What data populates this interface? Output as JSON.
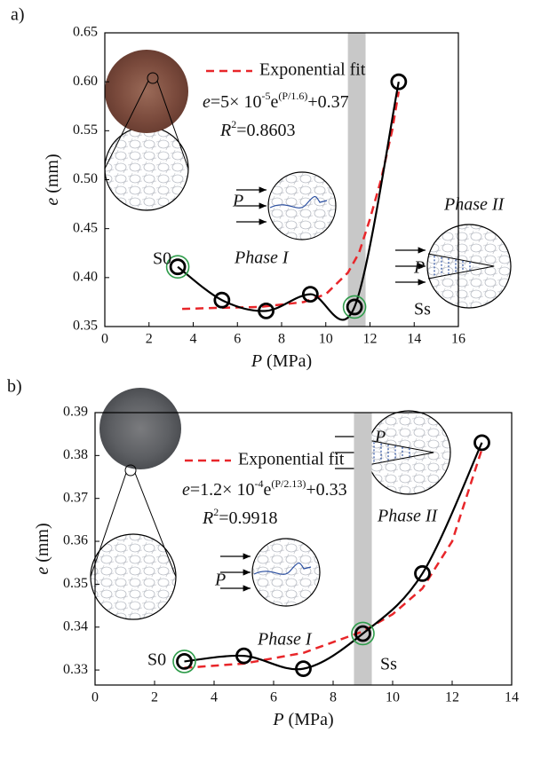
{
  "chart_data": [
    {
      "type": "line",
      "panel_label": "a)",
      "x_label": {
        "var": "P",
        "unit": "(MPa)"
      },
      "y_label": {
        "var": "e",
        "unit": "(mm)"
      },
      "xlim": [
        0,
        16
      ],
      "xticks": [
        0,
        2,
        4,
        6,
        8,
        10,
        12,
        14,
        16
      ],
      "ylim": [
        0.35,
        0.65
      ],
      "yticks": [
        0.35,
        {
          "value": 0.4,
          "label": "0.40"
        },
        0.45,
        {
          "value": 0.5,
          "label": "0.50"
        },
        0.55,
        {
          "value": 0.6,
          "label": "0.60"
        },
        0.65
      ],
      "series": [
        {
          "color": "#000000",
          "x": [
            3.3,
            5.3,
            7.3,
            9.3,
            11.3,
            13.3
          ],
          "values": [
            0.411,
            0.377,
            0.366,
            0.383,
            0.37,
            0.6
          ]
        },
        {
          "name": "Exponential fit",
          "color": "#e8262a",
          "dashed": true,
          "x": [
            3.5,
            5,
            7,
            9,
            10,
            11,
            11.5,
            12,
            12.5,
            13,
            13.3
          ],
          "values": [
            0.368,
            0.369,
            0.37,
            0.375,
            0.383,
            0.405,
            0.425,
            0.46,
            0.5,
            0.55,
            0.59
          ]
        }
      ],
      "highlight_points": [
        0,
        4
      ],
      "highlight_color": "#2e9c4a",
      "band": [
        11,
        11.8
      ],
      "band_color": "#c8c8c8",
      "equation": [
        "e",
        "=5× 10",
        "-5",
        "e",
        "(P/1.6)",
        "+0.37"
      ],
      "r_squared": [
        "R",
        "2",
        "=0.8603"
      ],
      "annotations": [
        {
          "text": "S0"
        },
        {
          "text": "Ss"
        },
        {
          "text": "Phase I",
          "italic": true
        },
        {
          "text": "Phase II",
          "italic": true
        },
        {
          "text": "P",
          "italic": true
        },
        {
          "text": "P",
          "italic": true
        }
      ]
    },
    {
      "type": "line",
      "panel_label": "b)",
      "x_label": {
        "var": "P",
        "unit": "(MPa)"
      },
      "y_label": {
        "var": "e",
        "unit": "(mm)"
      },
      "xlim": [
        0,
        14
      ],
      "xticks": [
        0,
        2,
        4,
        6,
        8,
        10,
        12,
        14
      ],
      "ylim": [
        0.3265,
        0.39
      ],
      "yticks": [
        0.33,
        0.34,
        0.35,
        0.36,
        0.37,
        0.38,
        0.39
      ],
      "series": [
        {
          "color": "#000000",
          "x": [
            3,
            5,
            7,
            9,
            11,
            13
          ],
          "values": [
            0.332,
            0.3333,
            0.3303,
            0.3385,
            0.3525,
            0.383
          ]
        },
        {
          "name": "Exponential fit",
          "color": "#e8262a",
          "dashed": true,
          "x": [
            3,
            5,
            7,
            9,
            10,
            11,
            12,
            13
          ],
          "values": [
            0.3305,
            0.3315,
            0.334,
            0.339,
            0.343,
            0.349,
            0.36,
            0.3815
          ]
        }
      ],
      "highlight_points": [
        0,
        3
      ],
      "highlight_color": "#2e9c4a",
      "band": [
        8.7,
        9.3
      ],
      "band_color": "#c8c8c8",
      "equation": [
        "e",
        "=1.2× 10",
        "-4",
        "e",
        "(P/2.13)",
        "+0.33"
      ],
      "r_squared": [
        "R",
        "2",
        "=0.9918"
      ],
      "annotations": [
        {
          "text": "S0"
        },
        {
          "text": "Ss"
        },
        {
          "text": "Phase I",
          "italic": true
        },
        {
          "text": "Phase II",
          "italic": true
        },
        {
          "text": "P",
          "italic": true
        },
        {
          "text": "P",
          "italic": true
        }
      ]
    }
  ]
}
